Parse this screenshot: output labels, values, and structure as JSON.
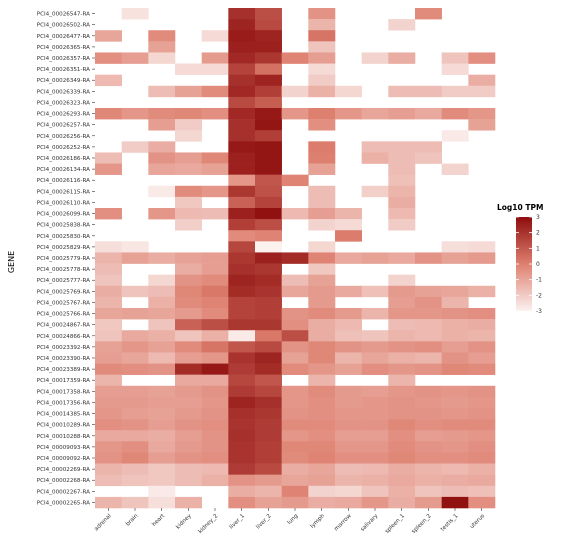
{
  "chart_data": {
    "type": "heatmap",
    "ylabel": "GENE",
    "x": [
      "adrenal",
      "brain",
      "heart",
      "kidney",
      "kidney_2",
      "liver_1",
      "liver_2",
      "lung",
      "lymph",
      "marrow",
      "salivary",
      "spleen_1",
      "spleen_2",
      "testis_1",
      "uterus"
    ],
    "y": [
      "PCI4_00026547-RA",
      "PCI4_00026502-RA",
      "PCI4_00026477-RA",
      "PCI4_00026365-RA",
      "PCI4_00026357-RA",
      "PCI4_00026351-RA",
      "PCI4_00026349-RA",
      "PCI4_00026339-RA",
      "PCI4_00026323-RA",
      "PCI4_00026293-RA",
      "PCI4_00026257-RA",
      "PCI4_00026256-RA",
      "PCI4_00026252-RA",
      "PCI4_00026186-RA",
      "PCI4_00026134-RA",
      "PCI4_00026116-RA",
      "PCI4_00026115-RA",
      "PCI4_00026110-RA",
      "PCI4_00026099-RA",
      "PCI4_00025838-RA",
      "PCI4_00025830-RA",
      "PCI4_00025829-RA",
      "PCI4_00025779-RA",
      "PCI4_00025778-RA",
      "PCI4_00025777-RA",
      "PCI4_00025769-RA",
      "PCI4_00025767-RA",
      "PCI4_00025766-RA",
      "PCI4_00024867-RA",
      "PCI4_00024866-RA",
      "PCI4_00023392-RA",
      "PCI4_00023390-RA",
      "PCI4_00023389-RA",
      "PCI4_00017359-RA",
      "PCI4_00017358-RA",
      "PCI4_00017356-RA",
      "PCI4_00014385-RA",
      "PCI4_00010289-RA",
      "PCI4_00010288-RA",
      "PCI4_00009093-RA",
      "PCI4_00009092-RA",
      "PCI4_00002269-RA",
      "PCI4_00002268-RA",
      "PCI4_00002267-RA",
      "PCI4_00002265-RA"
    ],
    "values": [
      [
        null,
        -2.6,
        null,
        null,
        null,
        2.1,
        1.3,
        null,
        -0.5,
        null,
        null,
        null,
        -0.3,
        null,
        null
      ],
      [
        null,
        null,
        null,
        null,
        null,
        2.4,
        1.4,
        null,
        -1.4,
        null,
        null,
        -2.2,
        null,
        null,
        null
      ],
      [
        -1.0,
        null,
        -0.3,
        null,
        -2.4,
        2.6,
        2.4,
        null,
        0.3,
        null,
        null,
        null,
        null,
        null,
        null
      ],
      [
        null,
        null,
        -0.9,
        null,
        null,
        2.5,
        2.5,
        null,
        -1.8,
        null,
        null,
        null,
        null,
        null,
        null
      ],
      [
        -0.4,
        -0.8,
        -2.3,
        null,
        -0.7,
        2.3,
        1.9,
        -0.1,
        -0.8,
        null,
        -2.2,
        -1.2,
        null,
        -1.8,
        -0.4
      ],
      [
        null,
        null,
        null,
        -2.4,
        -2.4,
        1.6,
        0.4,
        null,
        -2.4,
        null,
        null,
        null,
        null,
        -2.4,
        null
      ],
      [
        -1.5,
        null,
        null,
        null,
        null,
        2.1,
        2.4,
        null,
        -2.0,
        null,
        null,
        null,
        null,
        null,
        -1.2
      ],
      [
        null,
        null,
        -1.6,
        -0.9,
        -0.3,
        2.3,
        1.7,
        -2.2,
        -1.3,
        -2.3,
        null,
        -1.6,
        -1.6,
        -2.0,
        -2.0
      ],
      [
        null,
        null,
        null,
        null,
        null,
        1.4,
        0.9,
        null,
        null,
        null,
        null,
        null,
        null,
        null,
        null
      ],
      [
        -0.2,
        -0.6,
        -0.3,
        -0.2,
        -0.4,
        2.3,
        2.7,
        -0.6,
        0.0,
        -0.6,
        -1.0,
        -0.8,
        -1.1,
        -0.3,
        -0.6
      ],
      [
        null,
        null,
        -0.8,
        -2.0,
        null,
        2.1,
        2.8,
        null,
        -0.4,
        null,
        null,
        null,
        null,
        null,
        -0.9
      ],
      [
        null,
        null,
        null,
        -2.3,
        null,
        2.1,
        1.7,
        null,
        null,
        null,
        null,
        null,
        null,
        -2.8,
        null
      ],
      [
        null,
        -2.0,
        -1.2,
        null,
        null,
        2.7,
        2.8,
        null,
        0.1,
        null,
        -1.6,
        -1.6,
        -1.6,
        null,
        null
      ],
      [
        -1.6,
        null,
        -0.5,
        -0.8,
        -0.2,
        2.5,
        2.8,
        null,
        0.0,
        null,
        -1.3,
        -1.6,
        -1.8,
        null,
        null
      ],
      [
        -0.6,
        null,
        -1.0,
        -1.1,
        -0.9,
        2.5,
        2.8,
        null,
        -0.9,
        null,
        null,
        -1.6,
        null,
        -2.2,
        null
      ],
      [
        null,
        null,
        null,
        null,
        null,
        -0.6,
        1.1,
        -0.1,
        null,
        null,
        null,
        -1.7,
        null,
        null,
        null
      ],
      [
        null,
        null,
        -2.8,
        -0.3,
        -0.6,
        1.9,
        1.2,
        null,
        -1.6,
        null,
        -2.1,
        -1.4,
        null,
        null,
        null
      ],
      [
        null,
        null,
        null,
        -1.9,
        null,
        0.8,
        1.6,
        null,
        -1.6,
        null,
        null,
        -1.2,
        null,
        null,
        null
      ],
      [
        -0.4,
        null,
        -0.6,
        -1.5,
        -1.6,
        2.5,
        2.9,
        -1.5,
        -0.8,
        -1.4,
        null,
        -1.5,
        null,
        null,
        null
      ],
      [
        null,
        null,
        null,
        -2.1,
        null,
        1.7,
        1.3,
        null,
        -2.2,
        -2.4,
        null,
        -2.0,
        null,
        null,
        null
      ],
      [
        null,
        null,
        null,
        null,
        null,
        -0.3,
        -0.1,
        null,
        null,
        0.1,
        null,
        null,
        null,
        null,
        null
      ],
      [
        -2.5,
        -2.7,
        null,
        null,
        null,
        1.5,
        -3.0,
        null,
        -2.3,
        null,
        null,
        null,
        null,
        -2.5,
        -2.4
      ],
      [
        -1.4,
        -0.9,
        -1.2,
        -0.9,
        -0.8,
        1.9,
        2.5,
        2.2,
        -0.1,
        -1.1,
        -0.9,
        -1.1,
        -0.5,
        -0.9,
        -0.7
      ],
      [
        -1.6,
        null,
        null,
        -1.2,
        -0.8,
        2.1,
        1.9,
        null,
        -1.9,
        null,
        null,
        null,
        null,
        null,
        null
      ],
      [
        -1.8,
        null,
        -2.3,
        -0.5,
        -0.3,
        2.4,
        2.2,
        -1.6,
        -0.9,
        null,
        null,
        -2.2,
        null,
        null,
        null
      ],
      [
        -1.2,
        -1.8,
        -1.6,
        -0.2,
        0.2,
        2.2,
        2.0,
        -1.0,
        -0.7,
        -1.1,
        -1.7,
        -0.7,
        -0.9,
        -1.0,
        -1.3
      ],
      [
        -1.4,
        null,
        -1.3,
        -0.3,
        -0.1,
        1.6,
        1.7,
        null,
        -0.7,
        null,
        null,
        -0.8,
        -0.5,
        -1.4,
        null
      ],
      [
        -1.0,
        -0.9,
        -1.0,
        -0.7,
        -0.3,
        1.6,
        1.7,
        -0.5,
        -0.3,
        -0.7,
        -1.4,
        -0.6,
        -0.6,
        -0.5,
        -0.4
      ],
      [
        -1.9,
        null,
        -1.8,
        0.8,
        1.3,
        1.9,
        1.9,
        -0.4,
        -1.2,
        -1.5,
        null,
        -1.6,
        -1.5,
        -1.3,
        -1.2
      ],
      [
        -1.8,
        -1.1,
        -1.3,
        -1.8,
        -1.3,
        -2.8,
        0.2,
        1.3,
        -1.2,
        -1.7,
        -1.8,
        -1.4,
        -1.5,
        -1.3,
        -1.4
      ],
      [
        -0.9,
        -0.6,
        -0.9,
        -0.3,
        0.3,
        1.1,
        1.4,
        -0.5,
        -0.2,
        -0.5,
        -0.7,
        -0.5,
        -0.4,
        -0.8,
        -0.5
      ],
      [
        -0.8,
        -1.0,
        -1.5,
        -0.8,
        -0.6,
        2.0,
        2.4,
        -0.9,
        -0.2,
        -1.4,
        -1.0,
        -1.3,
        -1.4,
        -0.5,
        -0.8
      ],
      [
        -0.3,
        -0.4,
        -0.5,
        2.2,
        2.7,
        1.8,
        2.2,
        -0.3,
        -0.6,
        -0.9,
        -0.4,
        -0.6,
        -0.5,
        -0.2,
        -0.3
      ],
      [
        -1.4,
        null,
        null,
        -1.1,
        -1.1,
        1.5,
        1.1,
        null,
        -1.4,
        null,
        null,
        -1.4,
        null,
        null,
        null
      ],
      [
        -0.8,
        -0.8,
        -0.9,
        -0.7,
        -0.5,
        1.8,
        1.5,
        -0.6,
        -0.3,
        -0.7,
        -0.8,
        -0.6,
        -0.5,
        -0.6,
        -0.5
      ],
      [
        -0.7,
        -0.7,
        -0.8,
        -0.8,
        -0.6,
        2.4,
        2.1,
        -0.6,
        -0.4,
        -0.7,
        -0.6,
        -0.5,
        -0.6,
        -0.7,
        -0.6
      ],
      [
        -0.6,
        -0.8,
        -0.9,
        -0.7,
        -0.5,
        2.1,
        1.9,
        -0.5,
        -0.4,
        -0.6,
        -0.6,
        -0.5,
        -0.5,
        -0.6,
        -0.5
      ],
      [
        -0.4,
        -0.5,
        -0.8,
        -0.5,
        -0.4,
        2.0,
        1.8,
        -0.3,
        -0.3,
        -0.5,
        -0.5,
        -0.2,
        -0.4,
        -0.3,
        -0.3
      ],
      [
        -1.1,
        -1.1,
        -1.2,
        -0.8,
        -0.5,
        2.1,
        1.8,
        -0.6,
        -0.4,
        -0.8,
        -0.8,
        -0.4,
        -0.8,
        -0.7,
        -0.6
      ],
      [
        -0.6,
        -0.4,
        -1.1,
        -0.7,
        -0.5,
        2.0,
        1.7,
        -0.2,
        -0.2,
        -0.6,
        -0.6,
        -0.3,
        -0.5,
        -0.6,
        -0.4
      ],
      [
        -0.5,
        -0.2,
        -0.8,
        -0.5,
        -0.4,
        2.0,
        1.7,
        -0.3,
        -0.1,
        -0.4,
        -0.4,
        -0.2,
        -0.4,
        -0.4,
        -0.3
      ],
      [
        -1.4,
        -1.6,
        -1.9,
        -1.6,
        -1.5,
        1.8,
        1.4,
        -1.2,
        -1.0,
        -1.6,
        -1.5,
        -1.2,
        -1.4,
        -1.5,
        -1.3
      ],
      [
        -1.6,
        -1.8,
        -1.9,
        -1.6,
        -1.3,
        -0.5,
        -0.7,
        -1.0,
        -0.9,
        -1.4,
        -1.3,
        -1.1,
        -1.3,
        -1.2,
        -1.1
      ],
      [
        null,
        null,
        -2.8,
        null,
        null,
        -1.2,
        -1.4,
        -0.1,
        -2.2,
        -2.3,
        -1.8,
        -1.3,
        -1.8,
        -1.6,
        -1.7
      ],
      [
        -1.4,
        -1.8,
        -2.5,
        -1.3,
        null,
        -0.4,
        -0.9,
        -0.7,
        -1.2,
        -1.1,
        -0.6,
        -1.2,
        -0.7,
        2.9,
        -0.4
      ]
    ],
    "colorbar": {
      "title": "Log10 TPM",
      "ticks": [
        "3",
        "2",
        "1",
        "0",
        "-1",
        "-2",
        "-3"
      ],
      "range": [
        -3,
        3
      ],
      "low_color": "#fbf1ef",
      "high_color": "#8e0d0d"
    },
    "legend_position": "right",
    "grid": false
  }
}
